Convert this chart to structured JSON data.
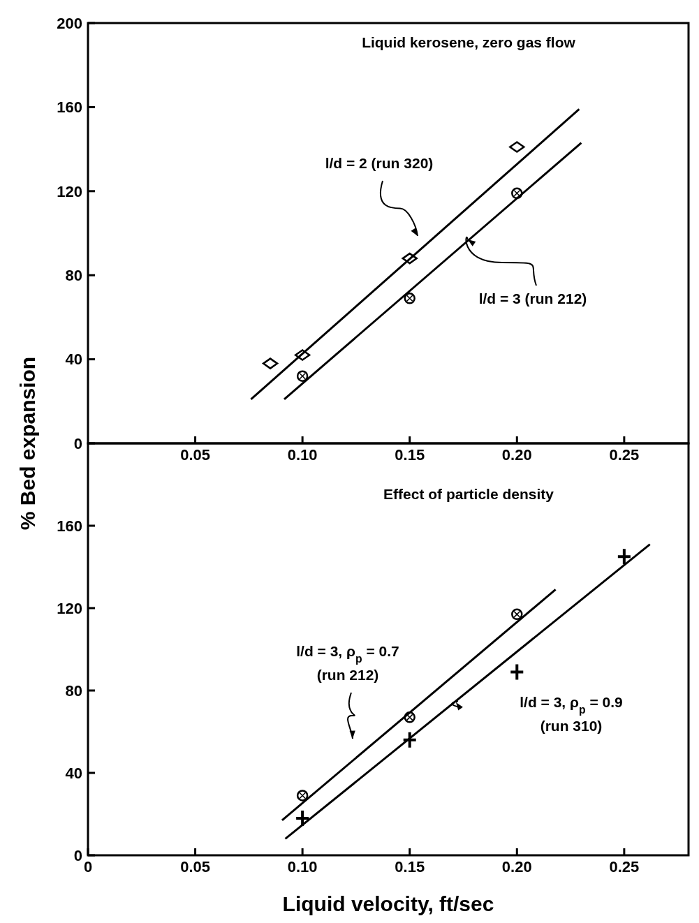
{
  "chart_data": [
    {
      "type": "scatter",
      "title": "Liquid kerosene, zero gas flow",
      "ylabel": "% Bed expansion",
      "xlim": [
        0,
        0.28
      ],
      "ylim": [
        0,
        200
      ],
      "xticks": [
        {
          "value": 0.05,
          "label": "0.05"
        },
        {
          "value": 0.1,
          "label": "0.10"
        },
        {
          "value": 0.15,
          "label": "0.15"
        },
        {
          "value": 0.2,
          "label": "0.20"
        },
        {
          "value": 0.25,
          "label": "0.25"
        }
      ],
      "yticks": [
        0,
        40,
        80,
        120,
        160,
        200
      ],
      "series": [
        {
          "marker": "diamond",
          "color": "#000000",
          "x": [
            0.085,
            0.1,
            0.15,
            0.2
          ],
          "values": [
            38,
            42,
            88,
            141
          ]
        },
        {
          "marker": "circle",
          "color": "#000000",
          "x": [
            0.1,
            0.15,
            0.2
          ],
          "values": [
            32,
            69,
            119
          ]
        },
        {
          "type": "line",
          "marker": "none",
          "color": "#000000",
          "x": [
            0.076,
            0.229
          ],
          "values": [
            21,
            159
          ]
        },
        {
          "type": "line",
          "marker": "none",
          "color": "#000000",
          "x": [
            0.0915,
            0.23
          ],
          "values": [
            21,
            143
          ]
        }
      ],
      "annotations": [
        "l/d = 2 (run 320)",
        {
          "text": "l/d = 3 (run 212)",
          "x": 0.177,
          "y": 97
        }
      ]
    },
    {
      "type": "scatter",
      "title": "Effect of particle density",
      "xlabel": "Liquid velocity, ft/sec",
      "xlim": [
        0,
        0.28
      ],
      "ylim": [
        0,
        200
      ],
      "xticks": [
        0,
        {
          "value": 0.05,
          "label": "0.05"
        },
        {
          "value": 0.1,
          "label": "0.10"
        },
        {
          "value": 0.15,
          "label": "0.15"
        },
        {
          "value": 0.2,
          "label": "0.20"
        },
        {
          "value": 0.25,
          "label": "0.25"
        }
      ],
      "yticks": [
        0,
        40,
        80,
        120,
        160
      ],
      "series": [
        {
          "marker": "circle",
          "color": "#000000",
          "x": [
            0.1,
            0.15,
            0.2
          ],
          "values": [
            29,
            67,
            117
          ]
        },
        {
          "marker": "cross",
          "color": "#000000",
          "x": [
            0.1,
            0.15,
            0.2,
            0.25
          ],
          "values": [
            18,
            56,
            89,
            145
          ]
        },
        {
          "type": "line",
          "marker": "none",
          "color": "#000000",
          "x": [
            0.0905,
            0.218
          ],
          "values": [
            17,
            129
          ]
        },
        {
          "type": "line",
          "marker": "none",
          "color": "#000000",
          "x": [
            0.092,
            0.262
          ],
          "values": [
            8,
            151
          ]
        }
      ],
      "annotations": [
        "l/d = 3, ρ$_{p}$ = 0.7\n(run 212)",
        "l/d = 3, ρ$_{p}$ = 0.9\n(run 310)"
      ]
    }
  ]
}
